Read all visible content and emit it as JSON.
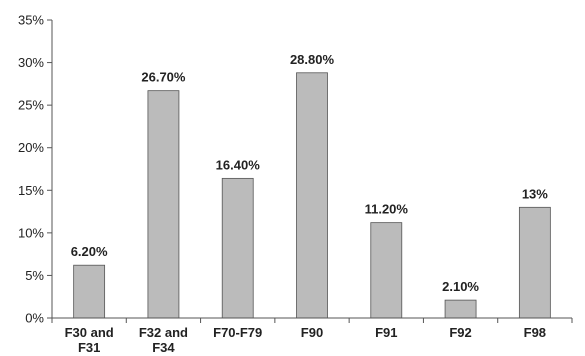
{
  "chart_data": {
    "type": "bar",
    "categories": [
      [
        "F30 and",
        "F31"
      ],
      [
        "F32 and",
        "F34"
      ],
      [
        "F70-F79"
      ],
      [
        "F90"
      ],
      [
        "F91"
      ],
      [
        "F92"
      ],
      [
        "F98"
      ]
    ],
    "values": [
      6.2,
      26.7,
      16.4,
      28.8,
      11.2,
      2.1,
      13
    ],
    "data_labels": [
      "6.20%",
      "26.70%",
      "16.40%",
      "28.80%",
      "11.20%",
      "2.10%",
      "13%"
    ],
    "yticks": [
      0,
      5,
      10,
      15,
      20,
      25,
      30,
      35
    ],
    "ytick_labels": [
      "0%",
      "5%",
      "10%",
      "15%",
      "20%",
      "25%",
      "30%",
      "35%"
    ],
    "ylim": [
      0,
      35
    ],
    "grid": false,
    "legend": "none",
    "bar_color": "#bbbbbb",
    "bar_edge_color": "#555555",
    "axis_color": "#555555"
  }
}
